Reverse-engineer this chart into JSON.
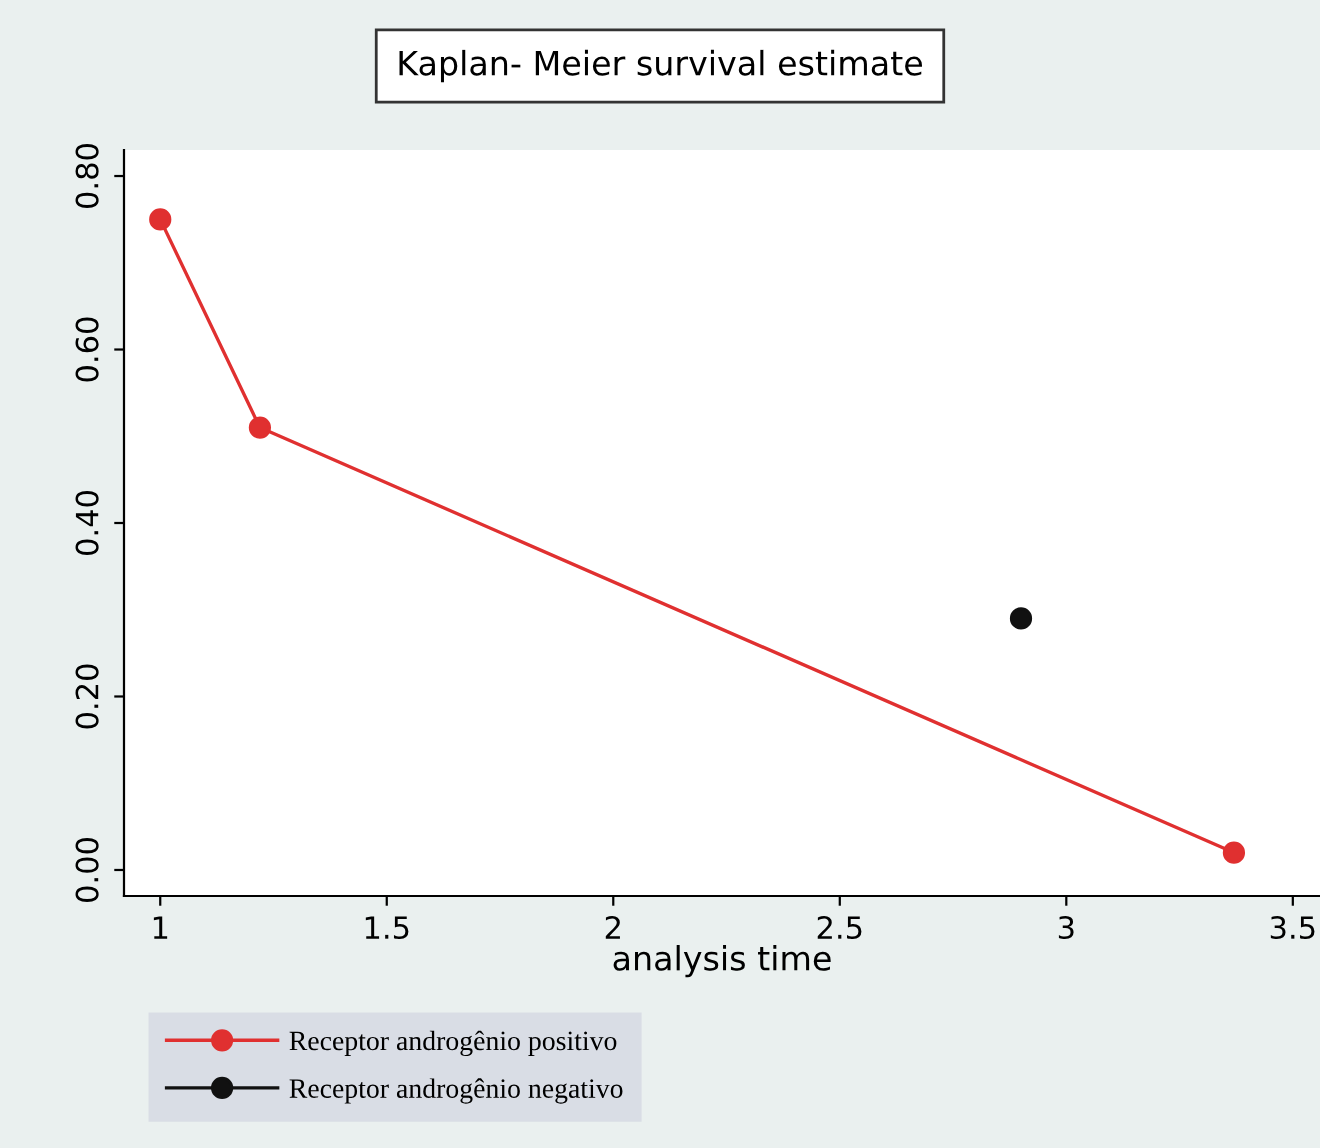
{
  "chart_data": {
    "type": "line",
    "title": "Kaplan- Meier survival estimate",
    "xlabel": "analysis time",
    "xlim": [
      0.92,
      3.56
    ],
    "xticks": [
      1,
      1.5,
      2,
      2.5,
      3,
      3.5
    ],
    "ylim": [
      -0.03,
      0.83
    ],
    "yticks": [
      {
        "value": 0,
        "label": "0.00"
      },
      {
        "value": 0.2,
        "label": "0.20"
      },
      {
        "value": 0.4,
        "label": "0.40"
      },
      {
        "value": 0.6,
        "label": "0.60"
      },
      {
        "value": 0.8,
        "label": "0.80"
      }
    ],
    "marker": "circle",
    "line_style": "solid",
    "grid": false,
    "legend": "bottom",
    "series": [
      {
        "name": "Receptor androgênio positivo",
        "color": "#e03030",
        "x": [
          1.0,
          1.22,
          3.37
        ],
        "values": [
          0.75,
          0.51,
          0.02
        ]
      },
      {
        "name": "Receptor androgênio negativo",
        "color": "#111111",
        "x": [
          2.9
        ],
        "values": [
          0.29
        ]
      }
    ]
  }
}
